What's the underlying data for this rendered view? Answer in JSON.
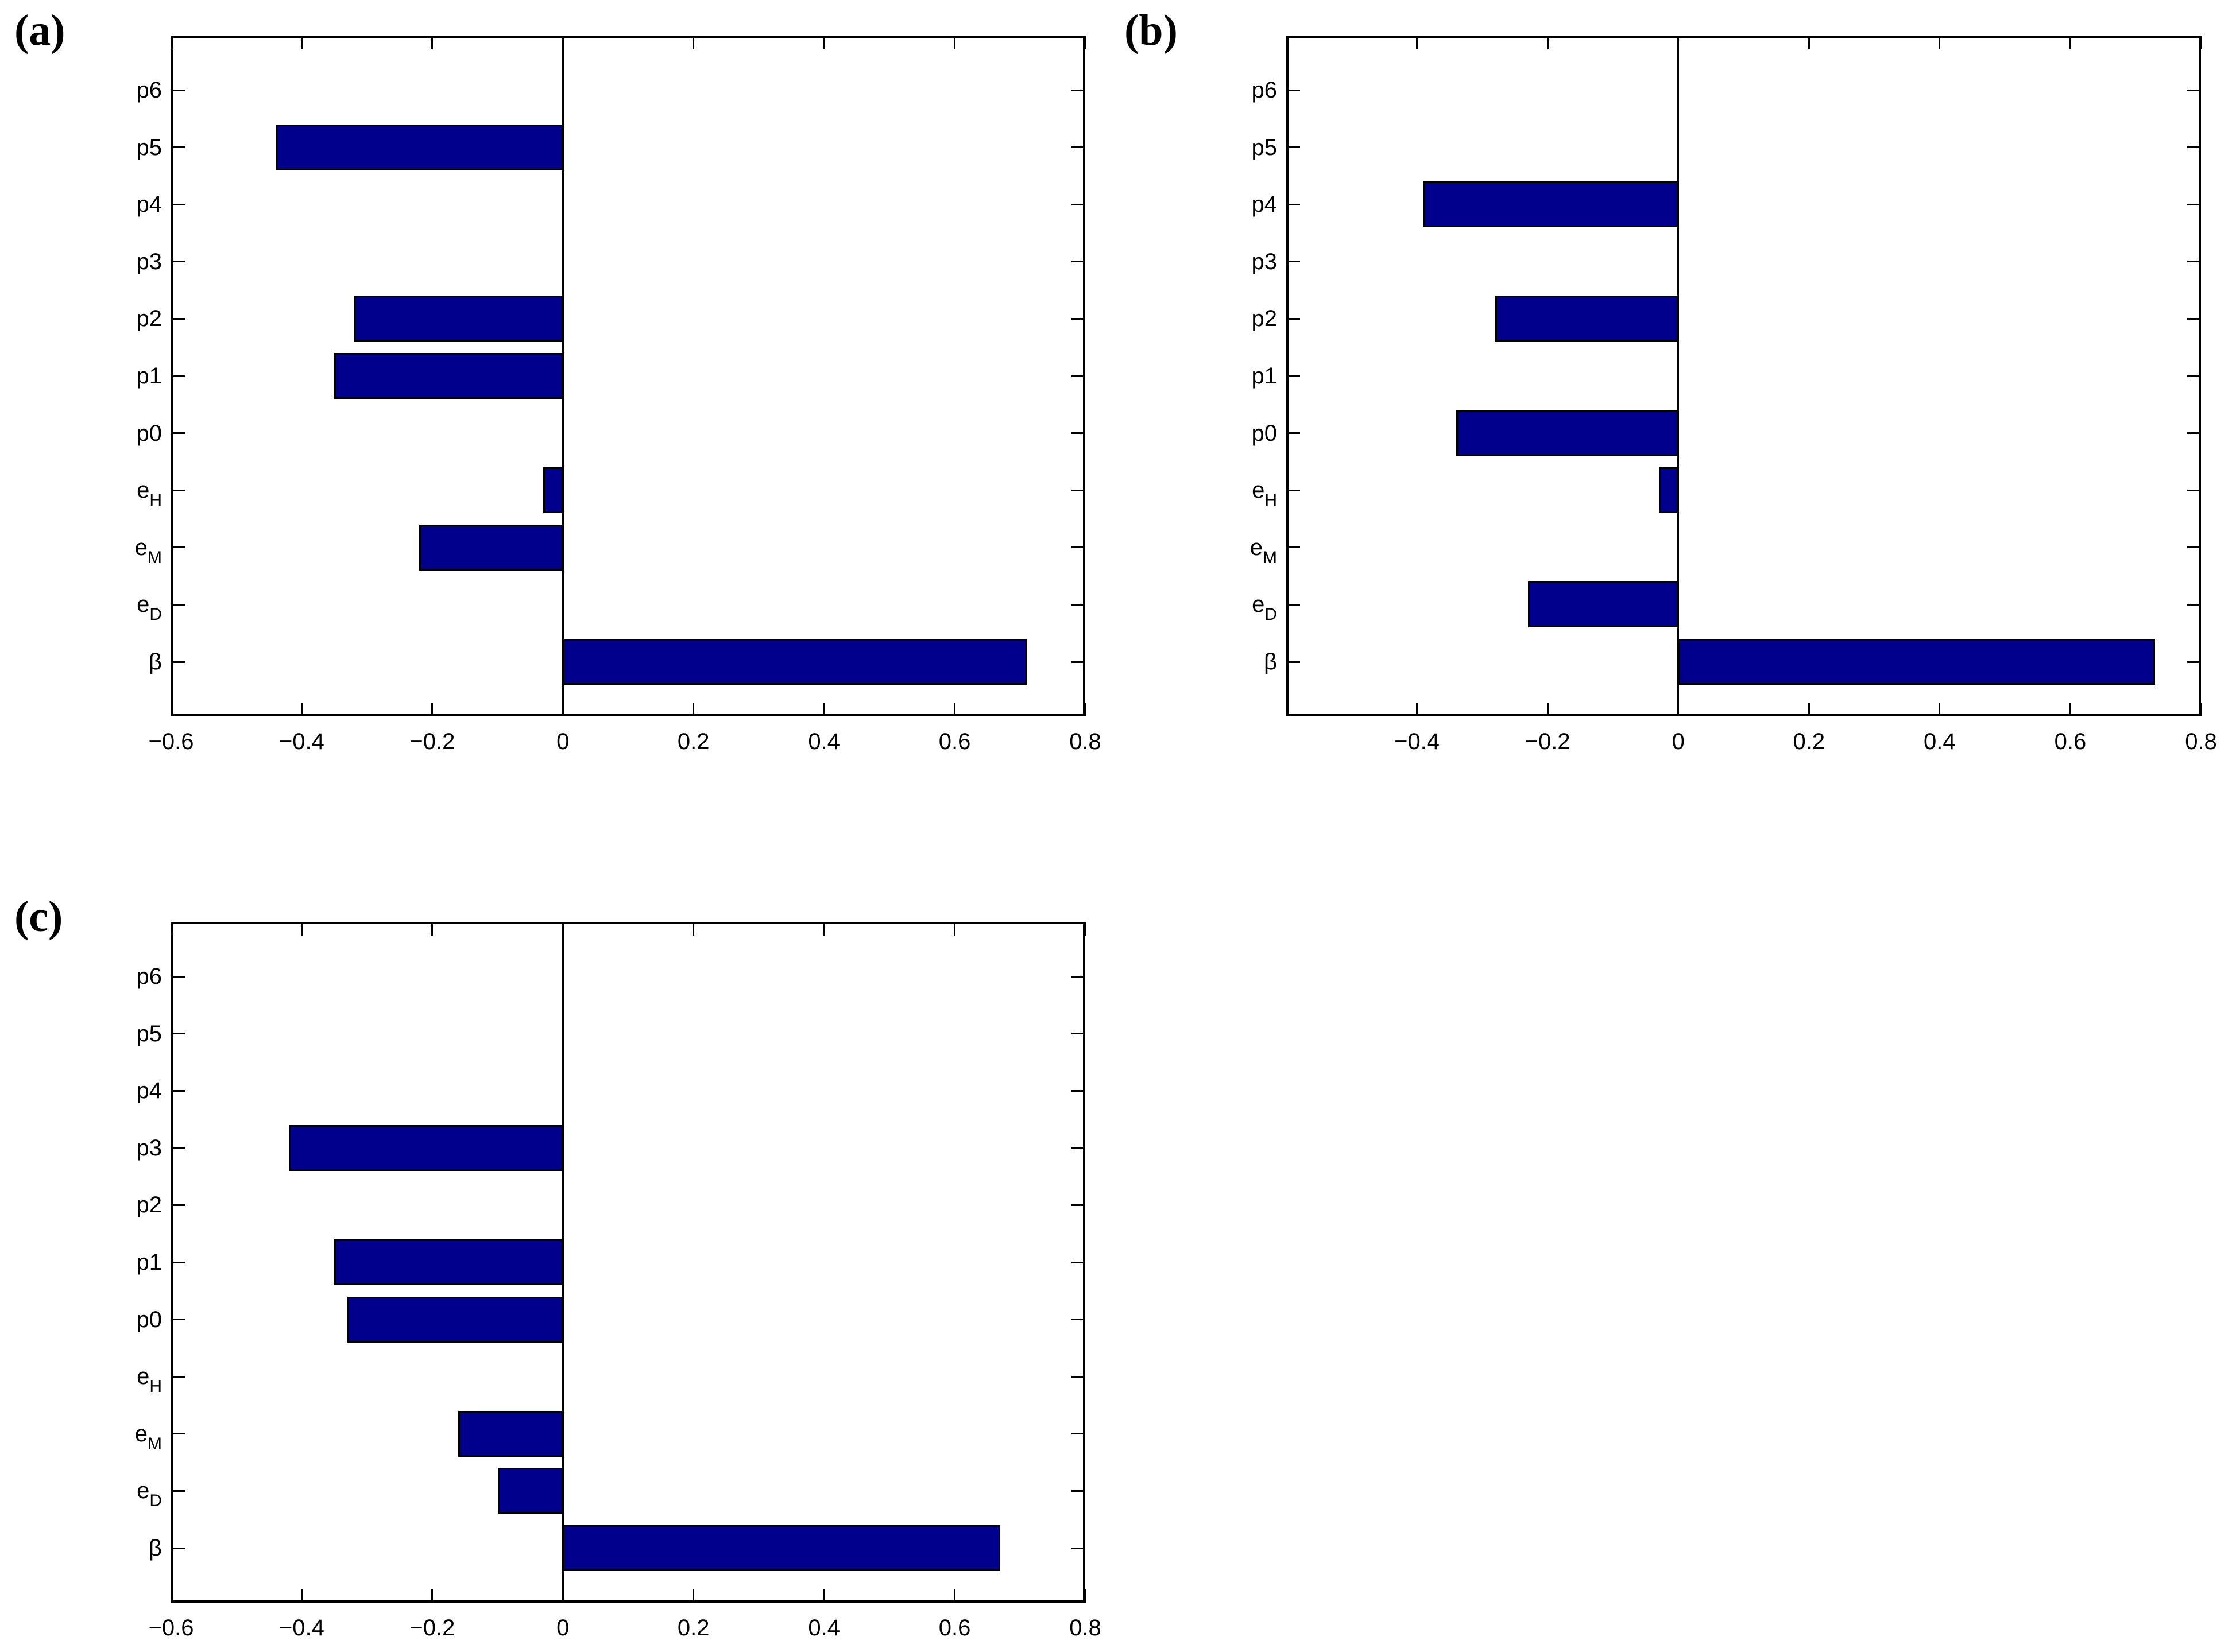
{
  "figure": {
    "background": "#ffffff",
    "bar_fill": "#00008C",
    "bar_edge": "#000000",
    "axis_color": "#000000"
  },
  "chart_data": [
    {
      "type": "bar",
      "orientation": "horizontal",
      "panel_label": "(a)",
      "categories": [
        "p6",
        "p5",
        "p4",
        "p3",
        "p2",
        "p1",
        "p0",
        "e_H",
        "e_M",
        "e_D",
        "β"
      ],
      "values": [
        0,
        -0.44,
        0,
        0,
        -0.32,
        -0.35,
        0,
        -0.03,
        -0.22,
        0,
        0.71
      ],
      "xlim": [
        -0.6,
        0.8
      ],
      "xticks": [
        -0.6,
        -0.4,
        -0.2,
        0,
        0.2,
        0.4,
        0.6,
        0.8
      ],
      "xtick_labels": [
        "−0.6",
        "−0.4",
        "−0.2",
        "0",
        "0.2",
        "0.4",
        "0.6",
        "0.8"
      ],
      "baseline": 0,
      "grid": false,
      "legend": null
    },
    {
      "type": "bar",
      "orientation": "horizontal",
      "panel_label": "(b)",
      "categories": [
        "p6",
        "p5",
        "p4",
        "p3",
        "p2",
        "p1",
        "p0",
        "e_H",
        "e_M",
        "e_D",
        "β"
      ],
      "values": [
        0,
        0,
        -0.39,
        0,
        -0.28,
        0,
        -0.34,
        -0.03,
        0,
        -0.23,
        0.73
      ],
      "xlim": [
        -0.6,
        0.8
      ],
      "xticks": [
        -0.4,
        -0.2,
        0,
        0.2,
        0.4,
        0.6,
        0.8
      ],
      "xtick_labels": [
        "−0.4",
        "−0.2",
        "0",
        "0.2",
        "0.4",
        "0.6",
        "0.8"
      ],
      "baseline": 0,
      "grid": false,
      "legend": null
    },
    {
      "type": "bar",
      "orientation": "horizontal",
      "panel_label": "(c)",
      "categories": [
        "p6",
        "p5",
        "p4",
        "p3",
        "p2",
        "p1",
        "p0",
        "e_H",
        "e_M",
        "e_D",
        "β"
      ],
      "values": [
        0,
        0,
        0,
        -0.42,
        0,
        -0.35,
        -0.33,
        0,
        -0.16,
        -0.1,
        0.67
      ],
      "xlim": [
        -0.6,
        0.8
      ],
      "xticks": [
        -0.6,
        -0.4,
        -0.2,
        0,
        0.2,
        0.4,
        0.6,
        0.8
      ],
      "xtick_labels": [
        "−0.6",
        "−0.4",
        "−0.2",
        "0",
        "0.2",
        "0.4",
        "0.6",
        "0.8"
      ],
      "baseline": 0,
      "grid": false,
      "legend": null
    }
  ]
}
